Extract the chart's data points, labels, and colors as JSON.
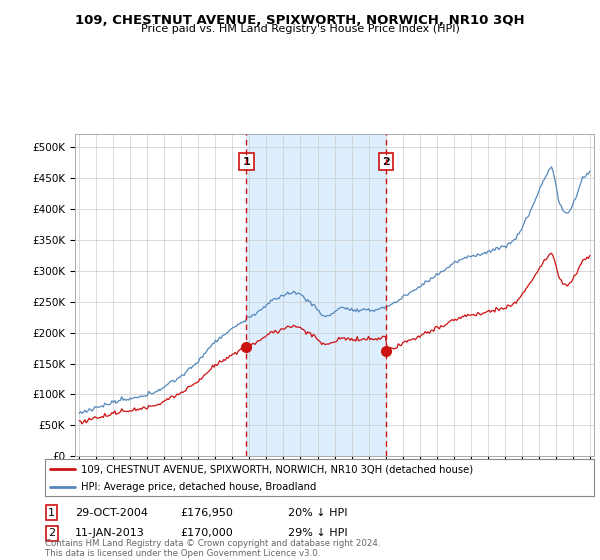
{
  "title": "109, CHESTNUT AVENUE, SPIXWORTH, NORWICH, NR10 3QH",
  "subtitle": "Price paid vs. HM Land Registry's House Price Index (HPI)",
  "ylim": [
    0,
    520000
  ],
  "yticks": [
    0,
    50000,
    100000,
    150000,
    200000,
    250000,
    300000,
    350000,
    400000,
    450000,
    500000
  ],
  "ytick_labels": [
    "£0",
    "£50K",
    "£100K",
    "£150K",
    "£200K",
    "£250K",
    "£300K",
    "£350K",
    "£400K",
    "£450K",
    "£500K"
  ],
  "hpi_color": "#5588bb",
  "price_color": "#cc1111",
  "vline_color": "#cc1111",
  "shade_color": "#ddeeff",
  "legend_label1": "109, CHESTNUT AVENUE, SPIXWORTH, NORWICH, NR10 3QH (detached house)",
  "legend_label2": "HPI: Average price, detached house, Broadland",
  "table_row1": [
    "1",
    "29-OCT-2004",
    "£176,950",
    "20% ↓ HPI"
  ],
  "table_row2": [
    "2",
    "11-JAN-2013",
    "£170,000",
    "29% ↓ HPI"
  ],
  "footer": "Contains HM Land Registry data © Crown copyright and database right 2024.\nThis data is licensed under the Open Government Licence v3.0.",
  "background_color": "#ffffff",
  "grid_color": "#cccccc",
  "purchase1_price": 176950,
  "purchase2_price": 170000
}
